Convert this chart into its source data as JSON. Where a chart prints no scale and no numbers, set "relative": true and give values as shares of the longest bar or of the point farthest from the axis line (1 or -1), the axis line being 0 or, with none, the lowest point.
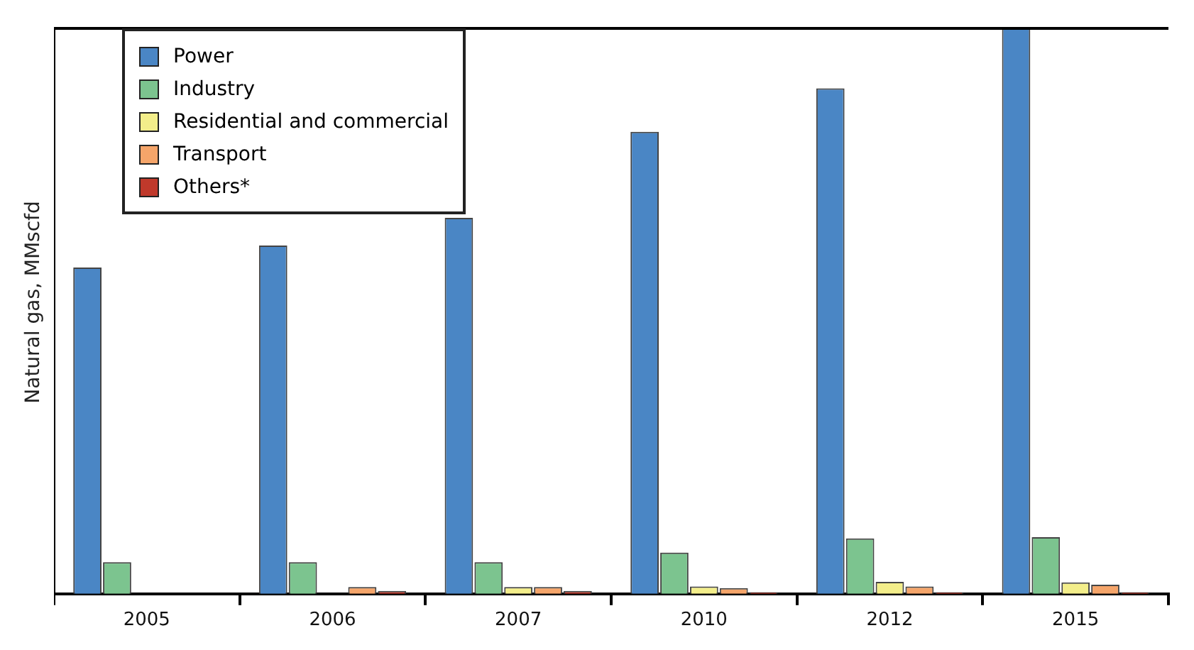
{
  "chart_data": {
    "type": "bar",
    "ylabel": "Natural gas, MMscfd",
    "relative": true,
    "grid": false,
    "legend": "top left",
    "categories": [
      "2005",
      "2006",
      "2007",
      "2010",
      "2012",
      "2015"
    ],
    "series": [
      {
        "name": "Power",
        "color": "#4a86c5",
        "values": [
          0.577,
          0.616,
          0.665,
          0.817,
          0.894,
          1
        ]
      },
      {
        "name": "Industry",
        "color": "#7cc48f",
        "values": [
          0.056,
          0.056,
          0.056,
          0.073,
          0.098,
          0.1
        ]
      },
      {
        "name": "Residential and commercial",
        "color": "#f3ee8a",
        "values": [
          0,
          0,
          0.012,
          0.013,
          0.021,
          0.02
        ]
      },
      {
        "name": "Transport",
        "color": "#f5a56a",
        "values": [
          0,
          0.012,
          0.012,
          0.01,
          0.013,
          0.016
        ]
      },
      {
        "name": "Others*",
        "color": "#c0392b",
        "values": [
          0,
          0.005,
          0.005,
          0.003,
          0.003,
          0.003
        ]
      }
    ]
  }
}
